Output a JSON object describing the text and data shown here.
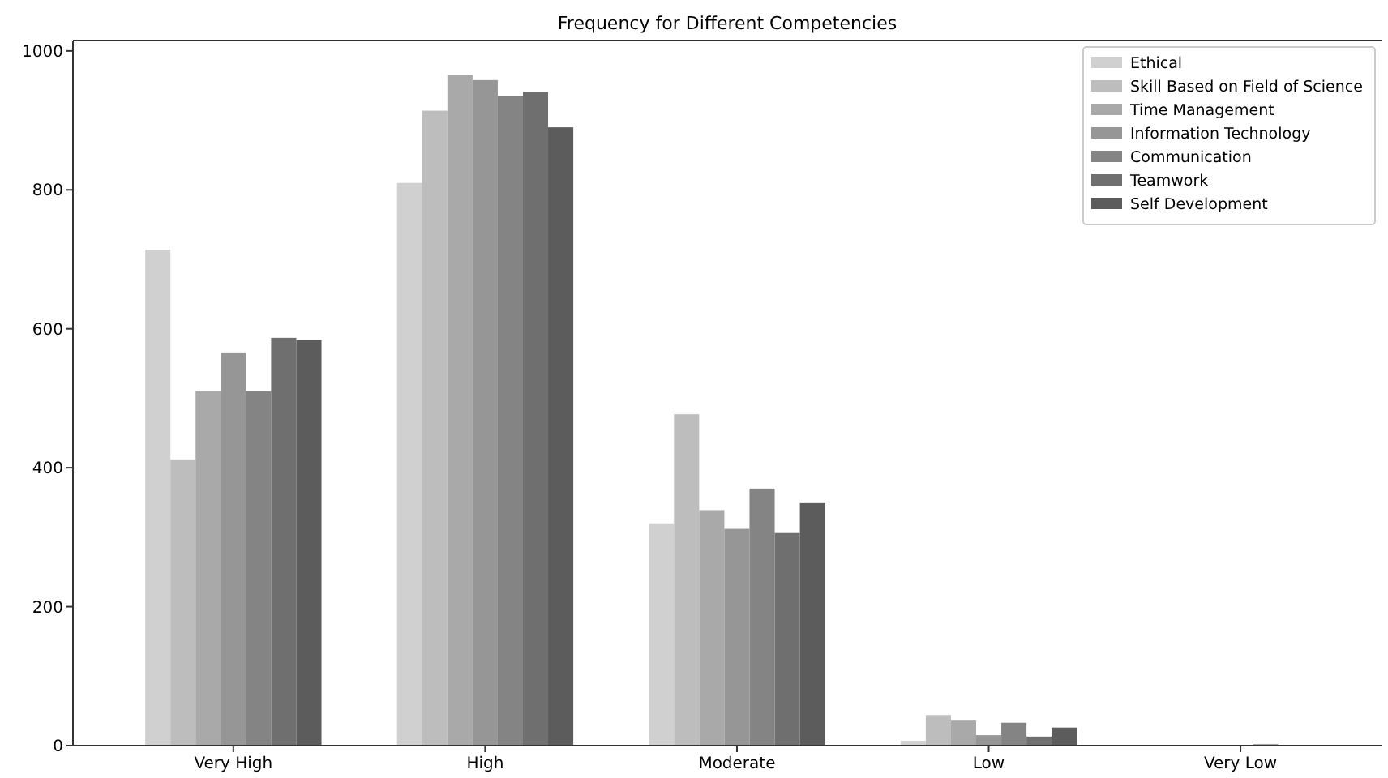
{
  "chart_data": {
    "type": "bar",
    "title": "Frequency for Different Competencies",
    "categories": [
      "Very High",
      "High",
      "Moderate",
      "Low",
      "Very Low"
    ],
    "series": [
      {
        "name": "Ethical",
        "color": "#d0d0d0",
        "values": [
          714,
          810,
          320,
          7,
          0
        ]
      },
      {
        "name": "Skill Based on Field of Science",
        "color": "#bdbdbd",
        "values": [
          412,
          914,
          477,
          44,
          0
        ]
      },
      {
        "name": "Time Management",
        "color": "#a9a9a9",
        "values": [
          510,
          966,
          339,
          36,
          0
        ]
      },
      {
        "name": "Information Technology",
        "color": "#969696",
        "values": [
          566,
          958,
          312,
          15,
          0
        ]
      },
      {
        "name": "Communication",
        "color": "#848484",
        "values": [
          510,
          935,
          370,
          33,
          2
        ]
      },
      {
        "name": "Teamwork",
        "color": "#6f6f6f",
        "values": [
          587,
          941,
          306,
          13,
          0
        ]
      },
      {
        "name": "Self Development",
        "color": "#5c5c5c",
        "values": [
          584,
          890,
          349,
          26,
          0
        ]
      }
    ],
    "ylim": [
      0,
      1015
    ],
    "yticks": [
      0,
      200,
      400,
      600,
      800,
      1000
    ],
    "grid": false,
    "legend": "top right"
  }
}
